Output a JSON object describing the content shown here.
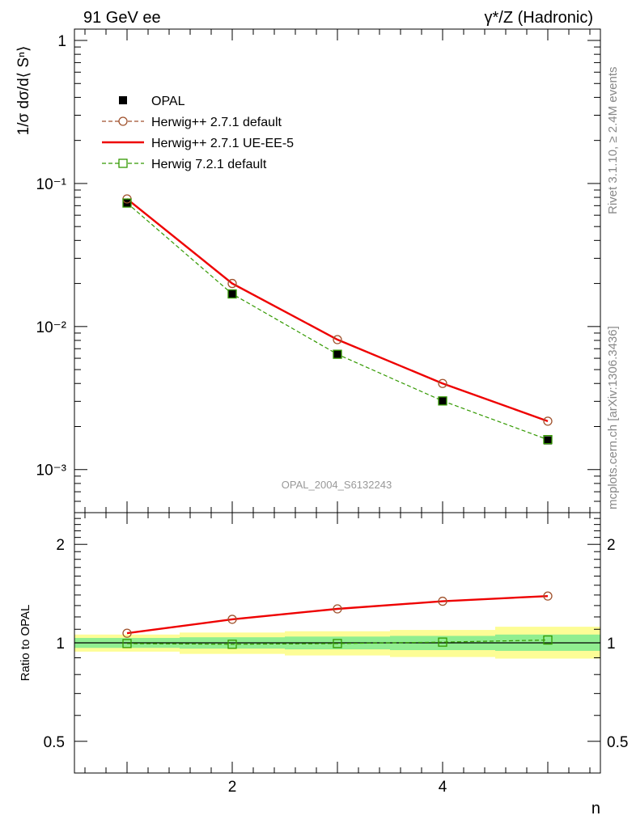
{
  "header": {
    "left": "91 GeV ee",
    "right": "γ*/Z (Hadronic)"
  },
  "side_labels": {
    "rivet": "Rivet 3.1.10, ≥ 2.4M events",
    "mcplots": "mcplots.cern.ch [arXiv:1306.3436]"
  },
  "analysis_label": "OPAL_2004_S6132243",
  "colors": {
    "opal": "#000000",
    "herwigpp_default": "#a0522d",
    "herwigpp_ueee5": "#ee0000",
    "herwig7_default": "#339900",
    "band_inner": "#90ee90",
    "band_outer": "#fdfd96"
  },
  "chart_data": [
    {
      "type": "line",
      "name": "main",
      "ylabel": "1/σ dσ/d⟨ Sⁿ⟩",
      "yscale": "log",
      "xlim": [
        0.5,
        5.5
      ],
      "ylim": [
        0.0005,
        1.2
      ],
      "y_ticklabels": [
        "1",
        "10⁻¹",
        "10⁻²",
        "10⁻³"
      ],
      "legend_placement": "top-left",
      "x": [
        1,
        2,
        3,
        4,
        5
      ],
      "series": [
        {
          "name": "OPAL",
          "style": "data",
          "values": [
            0.073,
            0.017,
            0.0064,
            0.003,
            0.0016
          ],
          "errors": [
            0.0015,
            0.0004,
            0.00015,
            8e-05,
            5e-05
          ]
        },
        {
          "name": "Herwig++ 2.7.1 default",
          "style": "circle-dashed",
          "values": [
            0.078,
            0.02,
            0.0081,
            0.004,
            0.00218
          ]
        },
        {
          "name": "Herwig++ 2.7.1 UE-EE-5",
          "style": "solid",
          "values": [
            0.078,
            0.02,
            0.0081,
            0.004,
            0.00218
          ]
        },
        {
          "name": "Herwig 7.2.1 default",
          "style": "square-dashed",
          "values": [
            0.073,
            0.0169,
            0.0064,
            0.00302,
            0.00162
          ]
        }
      ]
    },
    {
      "type": "line",
      "name": "ratio",
      "ylabel": "Ratio to OPAL",
      "xlabel": "n",
      "yscale": "log",
      "xlim": [
        0.5,
        5.5
      ],
      "ylim": [
        0.4,
        2.5
      ],
      "x_ticklabels": [
        "2",
        "4"
      ],
      "y_ticklabels": [
        "2",
        "1",
        "0.5"
      ],
      "x": [
        1,
        2,
        3,
        4,
        5
      ],
      "bands": {
        "x_edges": [
          0.5,
          1.5,
          2.5,
          3.5,
          4.5,
          5.5
        ],
        "inner": [
          [
            0.965,
            1.035
          ],
          [
            0.96,
            1.04
          ],
          [
            0.955,
            1.045
          ],
          [
            0.95,
            1.05
          ],
          [
            0.945,
            1.06
          ]
        ],
        "outer": [
          [
            0.94,
            1.06
          ],
          [
            0.925,
            1.075
          ],
          [
            0.915,
            1.085
          ],
          [
            0.905,
            1.095
          ],
          [
            0.895,
            1.12
          ]
        ]
      },
      "series": [
        {
          "name": "Herwig++ 2.7.1 default",
          "style": "circle-dashed",
          "values": [
            1.07,
            1.18,
            1.27,
            1.34,
            1.39
          ]
        },
        {
          "name": "Herwig++ 2.7.1 UE-EE-5",
          "style": "solid",
          "values": [
            1.07,
            1.18,
            1.27,
            1.34,
            1.39
          ]
        },
        {
          "name": "Herwig 7.2.1 default",
          "style": "square-dashed",
          "values": [
            0.995,
            0.99,
            0.995,
            1.005,
            1.02
          ]
        }
      ]
    }
  ]
}
